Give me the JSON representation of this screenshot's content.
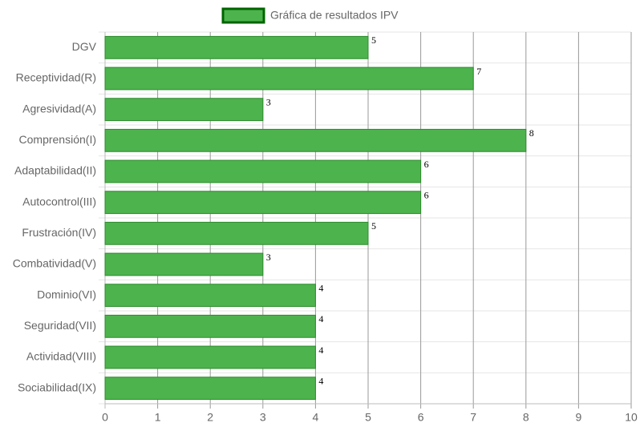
{
  "chart_data": {
    "type": "bar",
    "orientation": "horizontal",
    "legend_label": "Gráfica de resultados IPV",
    "legend": "top",
    "categories": [
      "DGV",
      "Receptividad(R)",
      "Agresividad(A)",
      "Comprensión(I)",
      "Adaptabilidad(II)",
      "Autocontrol(III)",
      "Frustración(IV)",
      "Combatividad(V)",
      "Dominio(VI)",
      "Seguridad(VII)",
      "Actividad(VIII)",
      "Sociabilidad(IX)"
    ],
    "values": [
      5,
      7,
      3,
      8,
      6,
      6,
      5,
      3,
      4,
      4,
      4,
      4
    ],
    "color": "#4db34d",
    "border_color": "#2e8b2e",
    "legend_border_color": "#006400",
    "xlim": [
      0,
      10
    ],
    "xticks": [
      0,
      1,
      2,
      3,
      4,
      5,
      6,
      7,
      8,
      9,
      10
    ],
    "grid": true
  }
}
